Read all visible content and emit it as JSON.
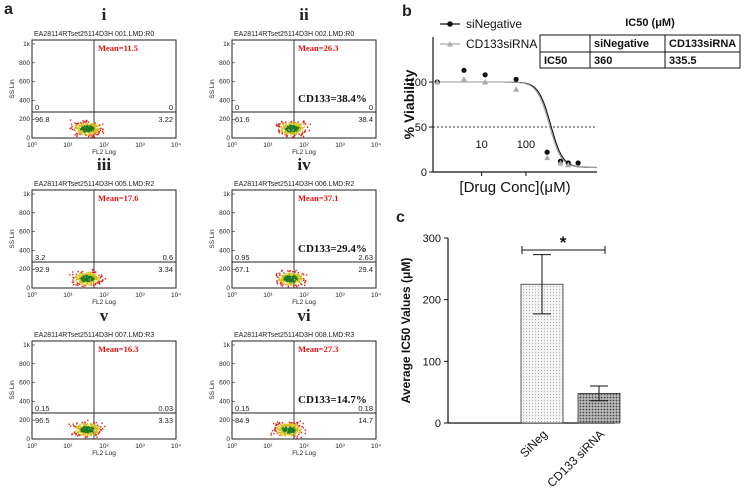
{
  "panel_labels": {
    "a": "a",
    "b": "b",
    "c": "c"
  },
  "flow_axis": {
    "ylabel": "SS Lin",
    "xlabel": "FL2 Log",
    "y_ticks": [
      "1k",
      "800",
      "600",
      "400",
      "200",
      "0"
    ],
    "x_ticks": [
      "10⁰",
      "10¹",
      "10²",
      "10³",
      "10⁴"
    ]
  },
  "flow_panels": [
    {
      "roman": "i",
      "header": "EA28114RTset25114D3H 001.LMD:R0",
      "mean": "Mean=11.5",
      "cd133": "",
      "ul": "0",
      "ur": "0",
      "ll": "96.8",
      "lr": "3.22"
    },
    {
      "roman": "ii",
      "header": "EA28114RTset25114D3H 002.LMD:R0",
      "mean": "Mean=26.3",
      "cd133": "CD133=38.4%",
      "ul": "0",
      "ur": "0",
      "ll": "61.6",
      "lr": "38.4"
    },
    {
      "roman": "iii",
      "header": "EA28114RTset25114D3H 005.LMD:R2",
      "mean": "Mean=17.6",
      "cd133": "",
      "ul": "3.2",
      "ur": "0.6",
      "ll": "92.9",
      "lr": "3.34"
    },
    {
      "roman": "iv",
      "header": "EA28114RTset25114D3H 006.LMD:R2",
      "mean": "Mean=37.1",
      "cd133": "CD133=29.4%",
      "ul": "0.95",
      "ur": "2.63",
      "ll": "67.1",
      "lr": "29.4"
    },
    {
      "roman": "v",
      "header": "EA28114RTset25114D3H 007.LMD:R3",
      "mean": "Mean=16.3",
      "cd133": "",
      "ul": "0.15",
      "ur": "0.03",
      "ll": "96.5",
      "lr": "3.33"
    },
    {
      "roman": "vi",
      "header": "EA28114RTset25114D3H 008.LMD:R3",
      "mean": "Mean=27.3",
      "cd133": "CD133=14.7%",
      "ul": "0.15",
      "ur": "0.18",
      "ll": "84.9",
      "lr": "14.7"
    }
  ],
  "ic50_table": {
    "title": "IC50 (μM)",
    "headers": [
      "",
      "siNegative",
      "CD133siRNA"
    ],
    "row": [
      "IC50",
      "360",
      "335.5"
    ]
  },
  "colors": {
    "mean_text": "#e01010",
    "scatter_core": "#1f7a1f",
    "scatter_mid": "#d8c020",
    "scatter_edge": "#e02020",
    "bar_siNeg": "#e6e6e6",
    "bar_cd133": "#8a8a8a"
  },
  "chart_data": [
    {
      "type": "scatter",
      "title": "",
      "xlabel": "[Drug Conc](μM)",
      "ylabel": "% Viability",
      "x_scale": "log",
      "x_ticks": [
        10,
        100
      ],
      "x_tick_labels": [
        "10",
        "100"
      ],
      "y_ticks": [
        0,
        50,
        100
      ],
      "y_tick_labels": [
        "0",
        "50",
        "100"
      ],
      "ylim": [
        0,
        150
      ],
      "xlim": [
        0.8,
        4000
      ],
      "reference_line": 50,
      "legend": "top-left",
      "series": [
        {
          "name": "siNegative",
          "color": "#111111",
          "marker": "circle",
          "x": [
            1,
            4,
            12,
            60,
            300,
            600,
            900,
            1500
          ],
          "y": [
            100,
            113,
            108,
            103,
            22,
            12,
            10,
            10
          ],
          "fit_ic50": 360
        },
        {
          "name": "CD133siRNA",
          "color": "#aaaaaa",
          "marker": "triangle",
          "x": [
            1,
            4,
            12,
            60,
            300,
            600,
            900
          ],
          "y": [
            100,
            103,
            100,
            92,
            16,
            10,
            8
          ],
          "fit_ic50": 335.5
        }
      ]
    },
    {
      "type": "bar",
      "title": "",
      "xlabel": "",
      "ylabel": "Average IC50 Values (μM)",
      "categories": [
        "SiNeg",
        "CD133 siRNA"
      ],
      "values": [
        225,
        48
      ],
      "errors": [
        48,
        12
      ],
      "ylim": [
        0,
        300
      ],
      "y_ticks": [
        0,
        100,
        200,
        300
      ],
      "significance": "*"
    }
  ]
}
